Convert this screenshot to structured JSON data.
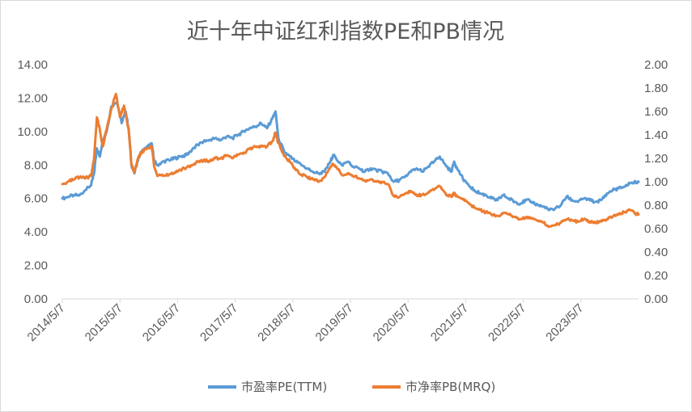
{
  "chart_data": {
    "type": "line",
    "title": "近十年中证红利指数PE和PB情况",
    "x_tick_labels": [
      "2014/5/7",
      "2015/5/7",
      "2016/5/7",
      "2017/5/7",
      "2018/5/7",
      "2019/5/7",
      "2020/5/7",
      "2021/5/7",
      "2022/5/7",
      "2023/5/7"
    ],
    "x_range": [
      2014.35,
      2024.35
    ],
    "y_left": {
      "min": 0,
      "max": 14,
      "step": 2,
      "ticks": [
        "0.00",
        "2.00",
        "4.00",
        "6.00",
        "8.00",
        "10.00",
        "12.00",
        "14.00"
      ]
    },
    "y_right": {
      "min": 0,
      "max": 2,
      "step": 0.2,
      "ticks": [
        "0.00",
        "0.20",
        "0.40",
        "0.60",
        "0.80",
        "1.00",
        "1.20",
        "1.40",
        "1.60",
        "1.80",
        "2.00"
      ]
    },
    "grid": false,
    "legend_position": "bottom",
    "series": [
      {
        "name": "市盈率PE(TTM)",
        "axis": "left",
        "color": "#5b9bd5",
        "points": [
          [
            2014.35,
            6.0
          ],
          [
            2014.45,
            6.1
          ],
          [
            2014.55,
            6.2
          ],
          [
            2014.65,
            6.2
          ],
          [
            2014.75,
            6.5
          ],
          [
            2014.85,
            6.8
          ],
          [
            2014.9,
            7.5
          ],
          [
            2014.95,
            9.0
          ],
          [
            2015.0,
            8.5
          ],
          [
            2015.05,
            9.5
          ],
          [
            2015.12,
            10.0
          ],
          [
            2015.2,
            11.5
          ],
          [
            2015.3,
            11.8
          ],
          [
            2015.38,
            10.5
          ],
          [
            2015.45,
            11.2
          ],
          [
            2015.5,
            10.2
          ],
          [
            2015.55,
            8.0
          ],
          [
            2015.6,
            7.5
          ],
          [
            2015.65,
            8.2
          ],
          [
            2015.72,
            8.8
          ],
          [
            2015.8,
            9.0
          ],
          [
            2015.9,
            9.3
          ],
          [
            2015.95,
            8.2
          ],
          [
            2016.0,
            8.0
          ],
          [
            2016.1,
            8.2
          ],
          [
            2016.2,
            8.3
          ],
          [
            2016.3,
            8.4
          ],
          [
            2016.4,
            8.5
          ],
          [
            2016.5,
            8.6
          ],
          [
            2016.6,
            8.9
          ],
          [
            2016.7,
            9.2
          ],
          [
            2016.8,
            9.4
          ],
          [
            2016.9,
            9.5
          ],
          [
            2017.0,
            9.6
          ],
          [
            2017.1,
            9.5
          ],
          [
            2017.2,
            9.7
          ],
          [
            2017.3,
            9.6
          ],
          [
            2017.4,
            9.8
          ],
          [
            2017.5,
            10.0
          ],
          [
            2017.6,
            10.2
          ],
          [
            2017.7,
            10.3
          ],
          [
            2017.8,
            10.5
          ],
          [
            2017.9,
            10.2
          ],
          [
            2018.0,
            10.8
          ],
          [
            2018.05,
            11.2
          ],
          [
            2018.1,
            9.6
          ],
          [
            2018.2,
            8.8
          ],
          [
            2018.3,
            8.5
          ],
          [
            2018.4,
            8.2
          ],
          [
            2018.5,
            8.0
          ],
          [
            2018.6,
            7.8
          ],
          [
            2018.7,
            7.6
          ],
          [
            2018.8,
            7.5
          ],
          [
            2018.9,
            7.6
          ],
          [
            2019.0,
            8.2
          ],
          [
            2019.05,
            8.6
          ],
          [
            2019.1,
            8.4
          ],
          [
            2019.2,
            8.0
          ],
          [
            2019.3,
            8.2
          ],
          [
            2019.4,
            7.9
          ],
          [
            2019.5,
            7.8
          ],
          [
            2019.6,
            7.6
          ],
          [
            2019.7,
            7.8
          ],
          [
            2019.8,
            7.7
          ],
          [
            2019.9,
            7.6
          ],
          [
            2020.0,
            7.5
          ],
          [
            2020.1,
            7.0
          ],
          [
            2020.2,
            7.1
          ],
          [
            2020.3,
            7.3
          ],
          [
            2020.4,
            7.6
          ],
          [
            2020.5,
            7.8
          ],
          [
            2020.6,
            7.6
          ],
          [
            2020.7,
            7.9
          ],
          [
            2020.8,
            8.2
          ],
          [
            2020.9,
            8.5
          ],
          [
            2021.0,
            8.0
          ],
          [
            2021.1,
            7.6
          ],
          [
            2021.15,
            8.2
          ],
          [
            2021.2,
            7.8
          ],
          [
            2021.3,
            7.2
          ],
          [
            2021.4,
            6.8
          ],
          [
            2021.5,
            6.5
          ],
          [
            2021.6,
            6.3
          ],
          [
            2021.7,
            6.2
          ],
          [
            2021.8,
            6.0
          ],
          [
            2021.9,
            5.9
          ],
          [
            2022.0,
            6.2
          ],
          [
            2022.1,
            6.0
          ],
          [
            2022.2,
            5.8
          ],
          [
            2022.3,
            5.7
          ],
          [
            2022.4,
            5.9
          ],
          [
            2022.5,
            5.8
          ],
          [
            2022.6,
            5.6
          ],
          [
            2022.7,
            5.5
          ],
          [
            2022.8,
            5.3
          ],
          [
            2022.9,
            5.4
          ],
          [
            2023.0,
            5.6
          ],
          [
            2023.1,
            6.1
          ],
          [
            2023.2,
            5.9
          ],
          [
            2023.3,
            5.8
          ],
          [
            2023.4,
            6.0
          ],
          [
            2023.5,
            5.9
          ],
          [
            2023.6,
            5.8
          ],
          [
            2023.7,
            5.9
          ],
          [
            2023.8,
            6.3
          ],
          [
            2023.9,
            6.5
          ],
          [
            2024.0,
            6.6
          ],
          [
            2024.1,
            6.7
          ],
          [
            2024.2,
            6.9
          ],
          [
            2024.3,
            7.0
          ],
          [
            2024.35,
            7.0
          ]
        ]
      },
      {
        "name": "市净率PB(MRQ)",
        "axis": "right",
        "color": "#ed7d31",
        "points": [
          [
            2014.35,
            0.98
          ],
          [
            2014.45,
            1.0
          ],
          [
            2014.55,
            1.02
          ],
          [
            2014.65,
            1.04
          ],
          [
            2014.75,
            1.03
          ],
          [
            2014.85,
            1.05
          ],
          [
            2014.9,
            1.2
          ],
          [
            2014.95,
            1.55
          ],
          [
            2015.0,
            1.45
          ],
          [
            2015.05,
            1.3
          ],
          [
            2015.12,
            1.45
          ],
          [
            2015.2,
            1.62
          ],
          [
            2015.28,
            1.75
          ],
          [
            2015.35,
            1.55
          ],
          [
            2015.42,
            1.65
          ],
          [
            2015.5,
            1.45
          ],
          [
            2015.55,
            1.15
          ],
          [
            2015.6,
            1.08
          ],
          [
            2015.65,
            1.18
          ],
          [
            2015.72,
            1.25
          ],
          [
            2015.8,
            1.28
          ],
          [
            2015.9,
            1.3
          ],
          [
            2015.95,
            1.12
          ],
          [
            2016.0,
            1.05
          ],
          [
            2016.1,
            1.05
          ],
          [
            2016.2,
            1.06
          ],
          [
            2016.3,
            1.08
          ],
          [
            2016.4,
            1.1
          ],
          [
            2016.5,
            1.12
          ],
          [
            2016.6,
            1.14
          ],
          [
            2016.7,
            1.17
          ],
          [
            2016.8,
            1.18
          ],
          [
            2016.9,
            1.18
          ],
          [
            2017.0,
            1.2
          ],
          [
            2017.1,
            1.2
          ],
          [
            2017.2,
            1.22
          ],
          [
            2017.3,
            1.2
          ],
          [
            2017.4,
            1.23
          ],
          [
            2017.5,
            1.25
          ],
          [
            2017.6,
            1.28
          ],
          [
            2017.7,
            1.3
          ],
          [
            2017.8,
            1.3
          ],
          [
            2017.9,
            1.3
          ],
          [
            2018.0,
            1.35
          ],
          [
            2018.05,
            1.42
          ],
          [
            2018.1,
            1.33
          ],
          [
            2018.2,
            1.22
          ],
          [
            2018.3,
            1.17
          ],
          [
            2018.4,
            1.1
          ],
          [
            2018.5,
            1.06
          ],
          [
            2018.6,
            1.04
          ],
          [
            2018.7,
            1.02
          ],
          [
            2018.8,
            1.0
          ],
          [
            2018.9,
            1.04
          ],
          [
            2019.0,
            1.12
          ],
          [
            2019.05,
            1.15
          ],
          [
            2019.1,
            1.13
          ],
          [
            2019.2,
            1.06
          ],
          [
            2019.3,
            1.07
          ],
          [
            2019.4,
            1.05
          ],
          [
            2019.5,
            1.03
          ],
          [
            2019.6,
            1.01
          ],
          [
            2019.7,
            1.02
          ],
          [
            2019.8,
            1.0
          ],
          [
            2019.9,
            1.0
          ],
          [
            2020.0,
            0.98
          ],
          [
            2020.1,
            0.88
          ],
          [
            2020.2,
            0.87
          ],
          [
            2020.3,
            0.9
          ],
          [
            2020.4,
            0.92
          ],
          [
            2020.5,
            0.88
          ],
          [
            2020.6,
            0.89
          ],
          [
            2020.7,
            0.91
          ],
          [
            2020.8,
            0.93
          ],
          [
            2020.9,
            0.96
          ],
          [
            2021.0,
            0.9
          ],
          [
            2021.1,
            0.87
          ],
          [
            2021.15,
            0.9
          ],
          [
            2021.2,
            0.88
          ],
          [
            2021.3,
            0.85
          ],
          [
            2021.4,
            0.82
          ],
          [
            2021.5,
            0.78
          ],
          [
            2021.6,
            0.76
          ],
          [
            2021.7,
            0.74
          ],
          [
            2021.8,
            0.72
          ],
          [
            2021.9,
            0.71
          ],
          [
            2022.0,
            0.73
          ],
          [
            2022.1,
            0.72
          ],
          [
            2022.2,
            0.7
          ],
          [
            2022.3,
            0.68
          ],
          [
            2022.4,
            0.7
          ],
          [
            2022.5,
            0.69
          ],
          [
            2022.6,
            0.67
          ],
          [
            2022.7,
            0.65
          ],
          [
            2022.8,
            0.62
          ],
          [
            2022.9,
            0.63
          ],
          [
            2023.0,
            0.65
          ],
          [
            2023.1,
            0.68
          ],
          [
            2023.2,
            0.67
          ],
          [
            2023.3,
            0.66
          ],
          [
            2023.4,
            0.68
          ],
          [
            2023.5,
            0.66
          ],
          [
            2023.6,
            0.65
          ],
          [
            2023.7,
            0.66
          ],
          [
            2023.8,
            0.68
          ],
          [
            2023.9,
            0.7
          ],
          [
            2024.0,
            0.72
          ],
          [
            2024.1,
            0.74
          ],
          [
            2024.2,
            0.76
          ],
          [
            2024.3,
            0.73
          ],
          [
            2024.35,
            0.72
          ]
        ]
      }
    ]
  }
}
